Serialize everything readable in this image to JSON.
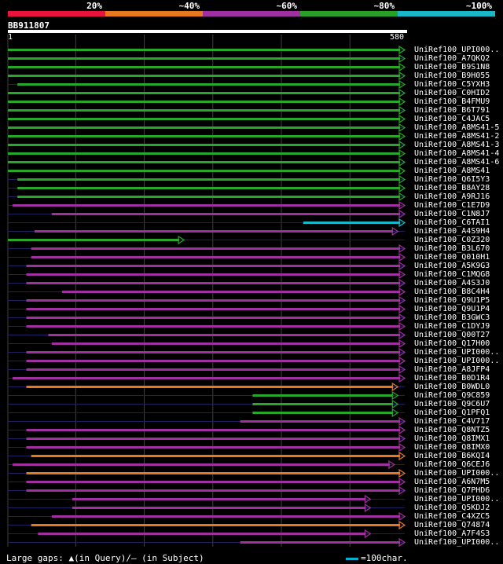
{
  "legend": [
    {
      "label": "20%",
      "color": "#e8143c"
    },
    {
      "label": "~40%",
      "color": "#e87820"
    },
    {
      "label": "~60%",
      "color": "#a030a0"
    },
    {
      "label": "~80%",
      "color": "#28a028"
    },
    {
      "label": "~100%",
      "color": "#18b8c8"
    }
  ],
  "query": {
    "id": "BB911807",
    "start": "1",
    "end": "580",
    "length": 580
  },
  "colors": {
    "green": "#28a828",
    "purple": "#a030a0",
    "orange": "#e87820",
    "cyan": "#18b8c8",
    "gap": "#202060",
    "grid": "#404040",
    "marker": "#ffffa0"
  },
  "hits": [
    {
      "label": "UniRef100_UPI000..",
      "start": 1,
      "end": 580,
      "color": "green",
      "arrow": true
    },
    {
      "label": "UniRef100_A7QKQ2",
      "start": 1,
      "end": 580,
      "color": "green",
      "arrow": true
    },
    {
      "label": "UniRef100_B9S1N8",
      "start": 1,
      "end": 580,
      "color": "green",
      "arrow": true
    },
    {
      "label": "UniRef100_B9H055",
      "start": 1,
      "end": 580,
      "color": "green",
      "arrow": true
    },
    {
      "label": "UniRef100_C5YXH3",
      "start": 15,
      "end": 580,
      "color": "green",
      "arrow": true
    },
    {
      "label": "UniRef100_C0HID2",
      "start": 1,
      "end": 580,
      "color": "green",
      "arrow": true
    },
    {
      "label": "UniRef100_B4FMU9",
      "start": 1,
      "end": 580,
      "color": "green",
      "arrow": true
    },
    {
      "label": "UniRef100_B6T791",
      "start": 1,
      "end": 580,
      "color": "green",
      "arrow": true
    },
    {
      "label": "UniRef100_C4JAC5",
      "start": 1,
      "end": 580,
      "color": "green",
      "arrow": true
    },
    {
      "label": "UniRef100_A8MS41-5",
      "start": 1,
      "end": 580,
      "color": "green",
      "arrow": true
    },
    {
      "label": "UniRef100_A8MS41-2",
      "start": 1,
      "end": 580,
      "color": "green",
      "arrow": true
    },
    {
      "label": "UniRef100_A8MS41-3",
      "start": 1,
      "end": 580,
      "color": "green",
      "arrow": true
    },
    {
      "label": "UniRef100_A8MS41-4",
      "start": 1,
      "end": 580,
      "color": "green",
      "arrow": true
    },
    {
      "label": "UniRef100_A8MS41-6",
      "start": 1,
      "end": 580,
      "color": "green",
      "arrow": true
    },
    {
      "label": "UniRef100_A8MS41",
      "start": 1,
      "end": 580,
      "color": "green",
      "arrow": true
    },
    {
      "label": "UniRef100_Q6I5Y3",
      "start": 15,
      "end": 580,
      "color": "green",
      "arrow": true
    },
    {
      "label": "UniRef100_B8AY28",
      "start": 15,
      "end": 580,
      "color": "green",
      "arrow": true
    },
    {
      "label": "UniRef100_A9RJ16",
      "start": 15,
      "end": 580,
      "color": "green",
      "arrow": true
    },
    {
      "label": "UniRef100_C1E7D9",
      "start": 8,
      "end": 580,
      "color": "purple",
      "arrow": true
    },
    {
      "label": "UniRef100_C1N8J7",
      "start": 65,
      "end": 580,
      "color": "purple",
      "arrow": true
    },
    {
      "label": "UniRef100_C6TAI1",
      "start": 432,
      "end": 580,
      "color": "cyan",
      "arrow": true
    },
    {
      "label": "UniRef100_A4S9H4",
      "start": 40,
      "end": 570,
      "color": "purple",
      "arrow": true
    },
    {
      "label": "UniRef100_C0Z320",
      "start": 1,
      "end": 258,
      "color": "green",
      "arrow": true
    },
    {
      "label": "UniRef100_B3L670",
      "start": 35,
      "end": 580,
      "color": "purple",
      "arrow": true
    },
    {
      "label": "UniRef100_Q010H1",
      "start": 35,
      "end": 580,
      "color": "purple",
      "arrow": true
    },
    {
      "label": "UniRef100_A5K9G3",
      "start": 28,
      "end": 580,
      "color": "purple",
      "arrow": true
    },
    {
      "label": "UniRef100_C1MQG8",
      "start": 28,
      "end": 580,
      "color": "purple",
      "arrow": true
    },
    {
      "label": "UniRef100_A4S3J0",
      "start": 28,
      "end": 580,
      "color": "purple",
      "arrow": true
    },
    {
      "label": "UniRef100_B8C4H4",
      "start": 80,
      "end": 580,
      "color": "purple",
      "arrow": true
    },
    {
      "label": "UniRef100_Q9U1P5",
      "start": 28,
      "end": 580,
      "color": "purple",
      "arrow": true
    },
    {
      "label": "UniRef100_Q9U1P4",
      "start": 28,
      "end": 580,
      "color": "purple",
      "arrow": true
    },
    {
      "label": "UniRef100_B3GWC3",
      "start": 28,
      "end": 580,
      "color": "purple",
      "arrow": true
    },
    {
      "label": "UniRef100_C1DYJ9",
      "start": 28,
      "end": 580,
      "color": "purple",
      "arrow": true
    },
    {
      "label": "UniRef100_Q00T27",
      "start": 60,
      "end": 580,
      "color": "purple",
      "arrow": true
    },
    {
      "label": "UniRef100_Q17H00",
      "start": 65,
      "end": 580,
      "color": "purple",
      "arrow": true
    },
    {
      "label": "UniRef100_UPI000..",
      "start": 28,
      "end": 580,
      "color": "purple",
      "arrow": true
    },
    {
      "label": "UniRef100_UPI000..",
      "start": 28,
      "end": 580,
      "color": "purple",
      "arrow": true
    },
    {
      "label": "UniRef100_A8JFP4",
      "start": 28,
      "end": 580,
      "color": "purple",
      "arrow": true
    },
    {
      "label": "UniRef100_B0D1R4",
      "start": 8,
      "end": 580,
      "color": "purple",
      "arrow": true
    },
    {
      "label": "UniRef100_B0WDL0",
      "start": 28,
      "end": 570,
      "color": "orange",
      "arrow": true
    },
    {
      "label": "UniRef100_Q9C859",
      "start": 358,
      "end": 570,
      "color": "green",
      "arrow": true
    },
    {
      "label": "UniRef100_Q9C6U7",
      "start": 358,
      "end": 570,
      "color": "green",
      "arrow": true
    },
    {
      "label": "UniRef100_Q1PFQ1",
      "start": 358,
      "end": 570,
      "color": "green",
      "arrow": true
    },
    {
      "label": "UniRef100_C4V717",
      "start": 340,
      "end": 580,
      "color": "purple",
      "arrow": true
    },
    {
      "label": "UniRef100_Q8NTZ5",
      "start": 28,
      "end": 580,
      "color": "purple",
      "arrow": true
    },
    {
      "label": "UniRef100_Q8IMX1",
      "start": 28,
      "end": 580,
      "color": "purple",
      "arrow": true
    },
    {
      "label": "UniRef100_Q8IMX0",
      "start": 28,
      "end": 580,
      "color": "purple",
      "arrow": true
    },
    {
      "label": "UniRef100_B6KQI4",
      "start": 35,
      "end": 580,
      "color": "orange",
      "arrow": true
    },
    {
      "label": "UniRef100_Q6CEJ6",
      "start": 8,
      "end": 565,
      "color": "purple",
      "arrow": true
    },
    {
      "label": "UniRef100_UPI000..",
      "start": 28,
      "end": 580,
      "color": "orange",
      "arrow": true
    },
    {
      "label": "UniRef100_A6N7M5",
      "start": 28,
      "end": 580,
      "color": "purple",
      "arrow": true
    },
    {
      "label": "UniRef100_Q7PHD6",
      "start": 28,
      "end": 580,
      "color": "purple",
      "arrow": true
    },
    {
      "label": "UniRef100_UPI000..",
      "start": 95,
      "end": 530,
      "color": "purple",
      "arrow": true
    },
    {
      "label": "UniRef100_Q5KDJ2",
      "start": 95,
      "end": 530,
      "color": "purple",
      "arrow": true
    },
    {
      "label": "UniRef100_C4XZC5",
      "start": 65,
      "end": 580,
      "color": "purple",
      "arrow": true
    },
    {
      "label": "UniRef100_Q74874",
      "start": 35,
      "end": 580,
      "color": "orange",
      "arrow": true
    },
    {
      "label": "UniRef100_A7F4S3",
      "start": 45,
      "end": 530,
      "color": "purple",
      "arrow": true
    },
    {
      "label": "UniRef100_UPI000..",
      "start": 340,
      "end": 580,
      "color": "purple",
      "arrow": true
    }
  ],
  "footer": {
    "legend_text": "Large gaps: ▲(in Query)/– (in Subject)",
    "scale_text": "=100char."
  }
}
